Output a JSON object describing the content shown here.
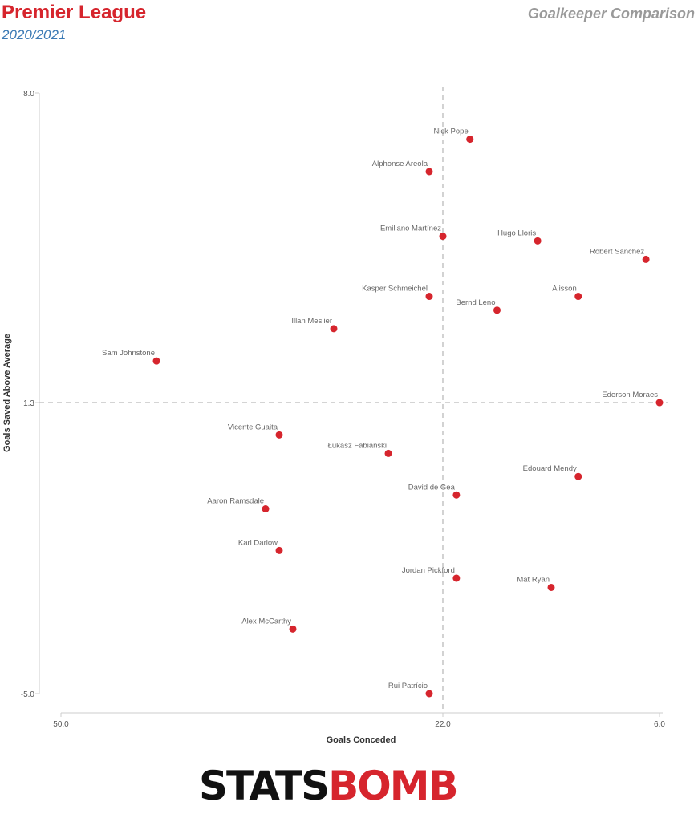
{
  "header": {
    "title": "Premier League",
    "season": "2020/2021",
    "chart_title": "Goalkeeper Comparison"
  },
  "branding": {
    "logo_stats": "STATS",
    "logo_bomb": "BOMB"
  },
  "colors": {
    "point": "#d6252d",
    "title": "#d6252d",
    "season": "#3b7ab5",
    "axis": "#cccccc",
    "text": "#333333"
  },
  "chart_data": {
    "type": "scatter",
    "xlabel": "Goals Conceded",
    "ylabel": "Goals Saved Above Average",
    "x_reversed": true,
    "xlim": [
      50.0,
      6.0
    ],
    "ylim": [
      -5.0,
      8.0
    ],
    "x_ticks": [
      "50.0",
      "22.0",
      "6.0"
    ],
    "y_ticks": [
      "8.0",
      "1.3",
      "-5.0"
    ],
    "reference_lines": {
      "x": 22.0,
      "y": 1.3
    },
    "grid": false,
    "points": [
      {
        "name": "Nick Pope",
        "x": 20.0,
        "y": 7.0
      },
      {
        "name": "Alphonse Areola",
        "x": 23.0,
        "y": 6.3
      },
      {
        "name": "Emiliano Martínez",
        "x": 22.0,
        "y": 4.9
      },
      {
        "name": "Hugo Lloris",
        "x": 15.0,
        "y": 4.8
      },
      {
        "name": "Robert Sanchez",
        "x": 7.0,
        "y": 4.4
      },
      {
        "name": "Alisson",
        "x": 12.0,
        "y": 3.6
      },
      {
        "name": "Kasper Schmeichel",
        "x": 23.0,
        "y": 3.6
      },
      {
        "name": "Bernd Leno",
        "x": 18.0,
        "y": 3.3
      },
      {
        "name": "Illan Meslier",
        "x": 30.0,
        "y": 2.9
      },
      {
        "name": "Sam Johnstone",
        "x": 43.0,
        "y": 2.2
      },
      {
        "name": "Ederson Moraes",
        "x": 6.0,
        "y": 1.3
      },
      {
        "name": "Vicente Guaita",
        "x": 34.0,
        "y": 0.6
      },
      {
        "name": "Łukasz Fabiański",
        "x": 26.0,
        "y": 0.2
      },
      {
        "name": "Edouard Mendy",
        "x": 12.0,
        "y": -0.3
      },
      {
        "name": "David de Gea",
        "x": 21.0,
        "y": -0.7
      },
      {
        "name": "Aaron Ramsdale",
        "x": 35.0,
        "y": -1.0
      },
      {
        "name": "Karl Darlow",
        "x": 34.0,
        "y": -1.9
      },
      {
        "name": "Jordan Pickford",
        "x": 21.0,
        "y": -2.5
      },
      {
        "name": "Mat Ryan",
        "x": 14.0,
        "y": -2.7
      },
      {
        "name": "Alex McCarthy",
        "x": 33.0,
        "y": -3.6
      },
      {
        "name": "Rui Patrício",
        "x": 23.0,
        "y": -5.0
      }
    ]
  }
}
